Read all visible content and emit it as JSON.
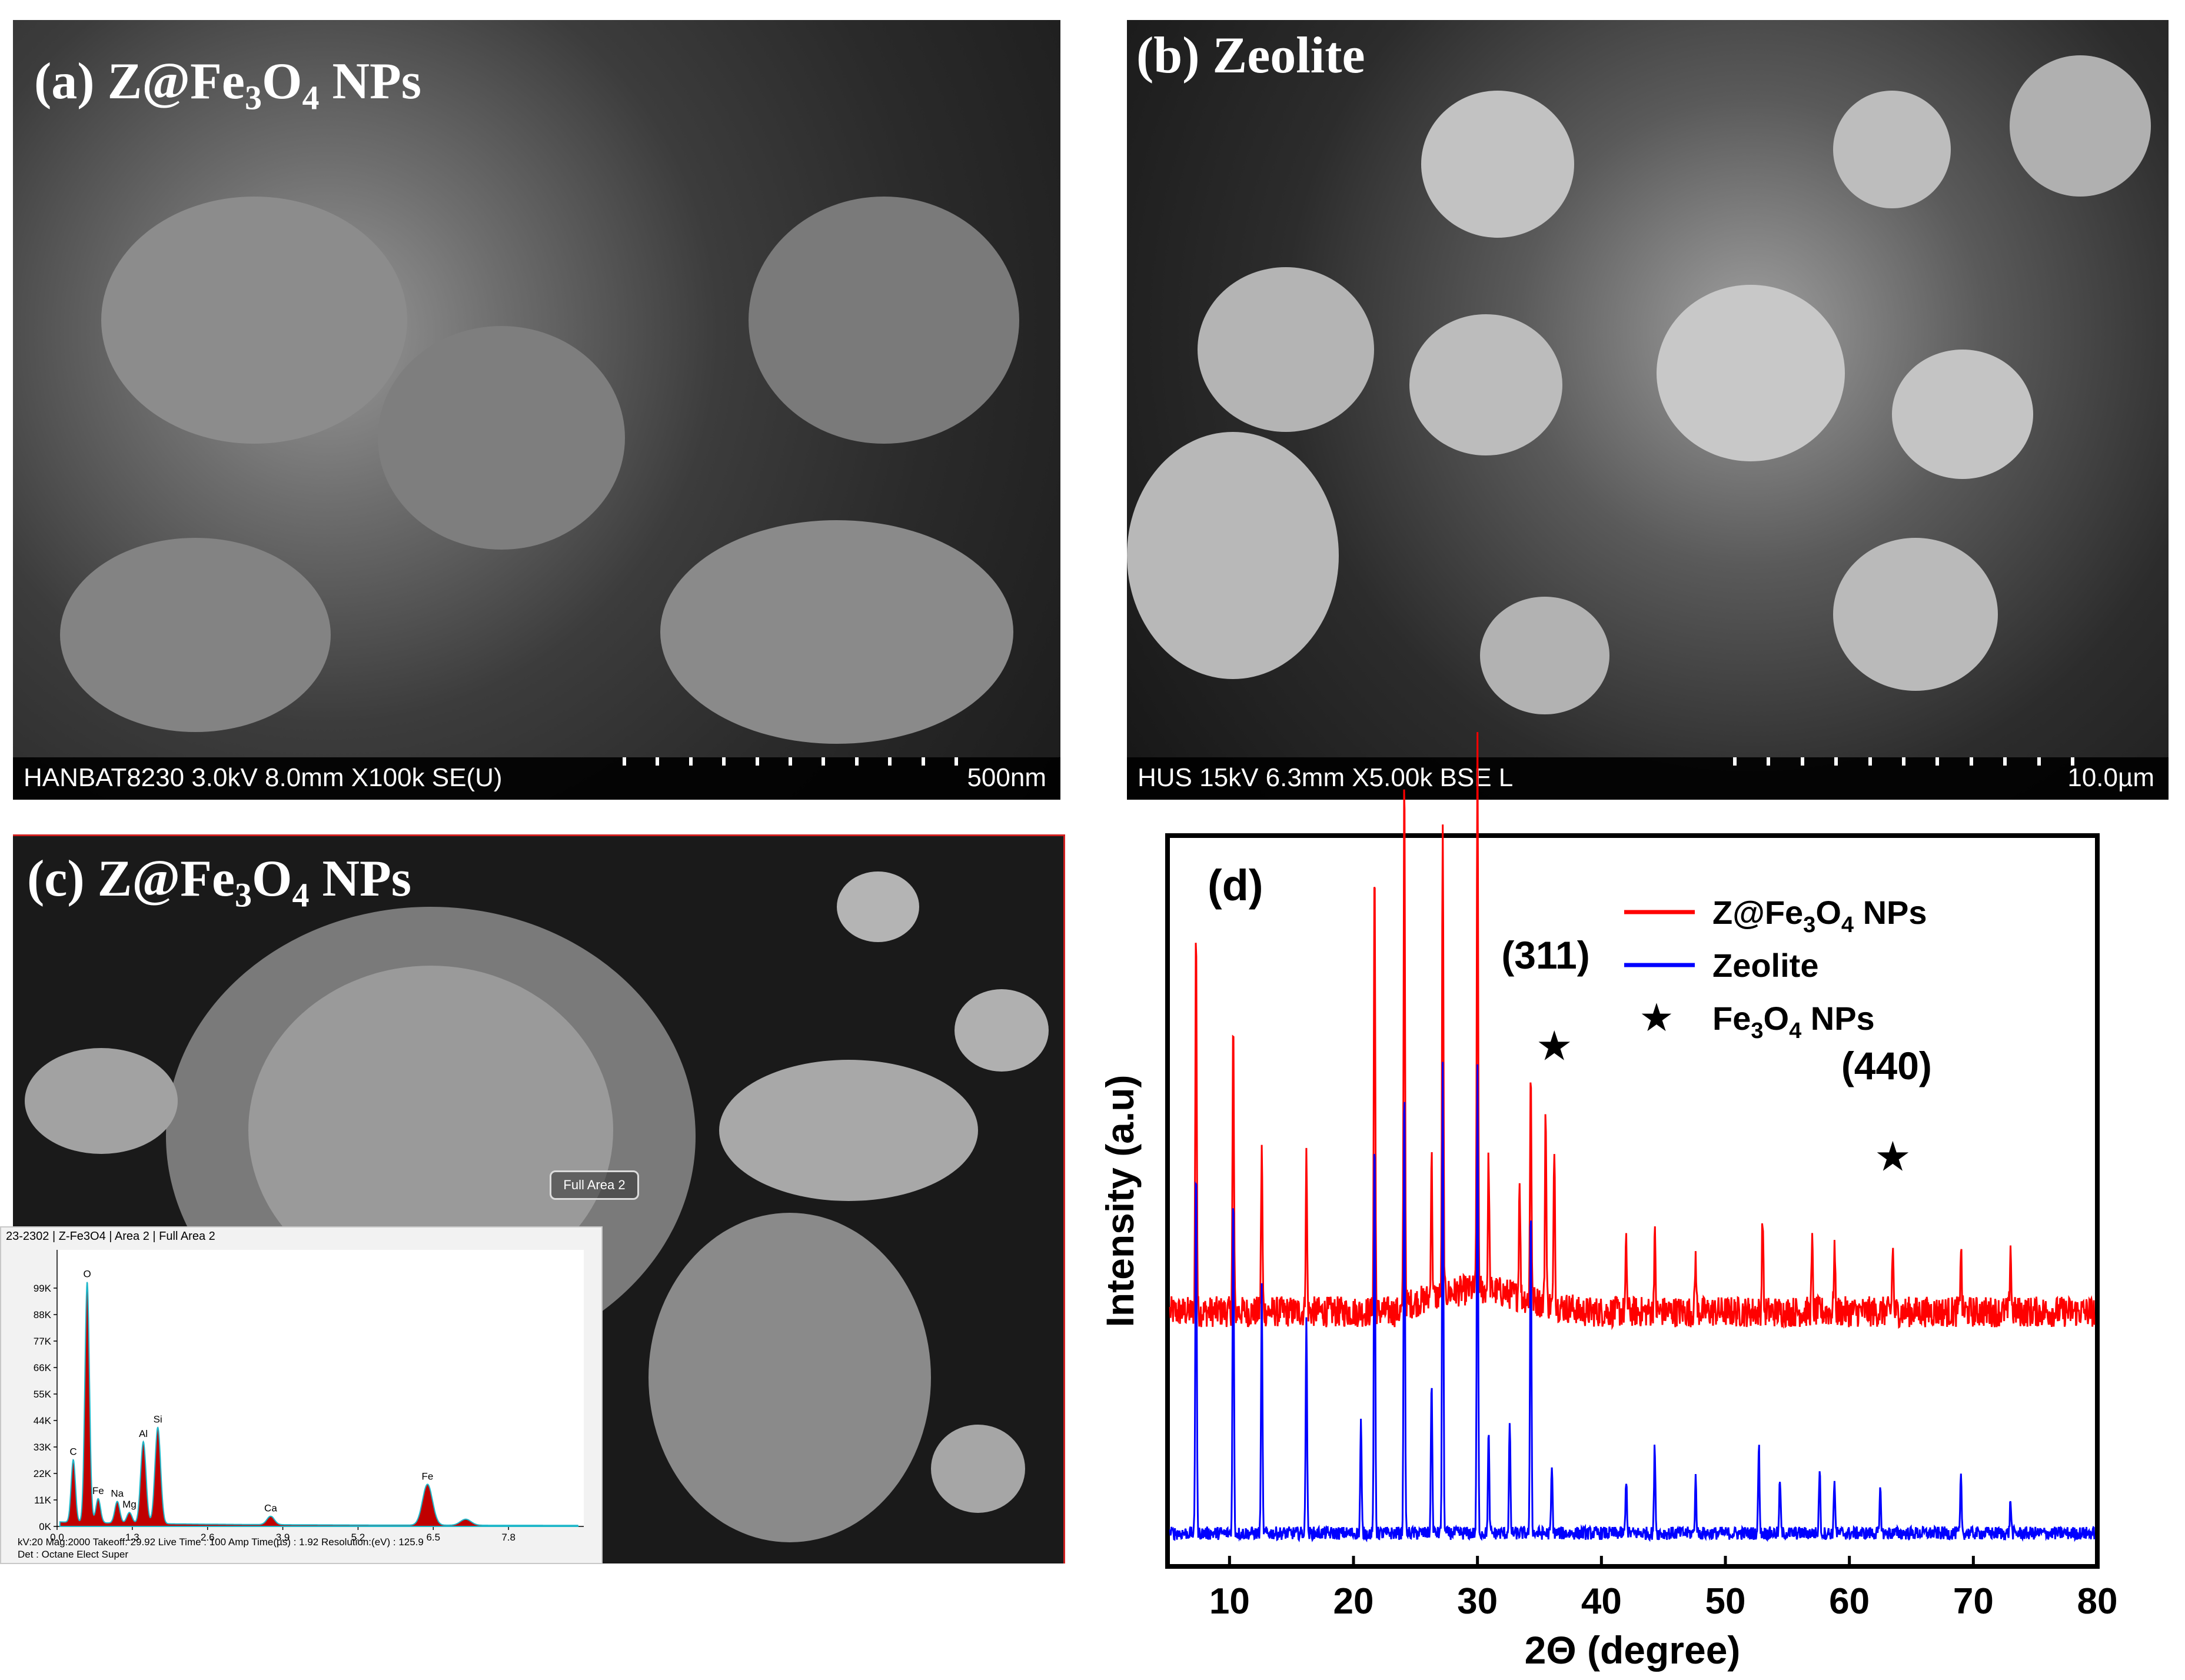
{
  "panel_a": {
    "title_main": "(a) Z@Fe",
    "title_sub1": "3",
    "title_mid": "O",
    "title_sub2": "4",
    "title_end": " NPs",
    "info": "HANBAT8230 3.0kV 8.0mm X100k SE(U)",
    "scale": "500nm"
  },
  "panel_b": {
    "title": "(b) Zeolite",
    "info": "HUS 15kV 6.3mm X5.00k BSE L",
    "scale": "10.0µm"
  },
  "panel_c": {
    "title_main": "(c) Z@Fe",
    "title_sub1": "3",
    "title_mid": "O",
    "title_sub2": "4",
    "title_end": " NPs",
    "area_label": "Full Area 2",
    "eds": {
      "header": "23-2302 | Z-Fe3O4 | Area 2 | Full Area 2",
      "footer_line1": "kV:20       Mag:2000       Takeoff: 29.92      Live Time : 100       Amp Time(µs) : 1.92       Resolution:(eV) : 125.9",
      "footer_line2": "Det : Octane Elect Super",
      "y_ticks": [
        "0K",
        "11K",
        "22K",
        "33K",
        "44K",
        "55K",
        "66K",
        "77K",
        "88K",
        "99K"
      ],
      "x_ticks": [
        "0.0",
        "1.3",
        "2.6",
        "3.9",
        "5.2",
        "6.5",
        "7.8"
      ],
      "peaks": [
        {
          "label": "C",
          "energy": 0.28,
          "counts": 26000
        },
        {
          "label": "O",
          "energy": 0.52,
          "counts": 100000
        },
        {
          "label": "Fe",
          "energy": 0.71,
          "counts": 10000
        },
        {
          "label": "Na",
          "energy": 1.04,
          "counts": 9000
        },
        {
          "label": "Mg",
          "energy": 1.25,
          "counts": 4500
        },
        {
          "label": "Al",
          "energy": 1.49,
          "counts": 34000
        },
        {
          "label": "Si",
          "energy": 1.74,
          "counts": 40000
        },
        {
          "label": "Ca",
          "energy": 3.69,
          "counts": 3500
        },
        {
          "label": "Fe",
          "energy": 6.4,
          "counts": 17000
        },
        {
          "label": "",
          "energy": 7.06,
          "counts": 2500
        }
      ],
      "fill_color": "#c00000",
      "line_color": "#1fb7c9"
    }
  },
  "chart_data": {
    "type": "line",
    "panel_label": "(d)",
    "xlabel": "2Θ (degree)",
    "ylabel": "Intensity (a.u)",
    "xlim": [
      5,
      80
    ],
    "x_ticks": [
      "10",
      "20",
      "30",
      "40",
      "50",
      "60",
      "70",
      "80"
    ],
    "x_tick_values": [
      10,
      20,
      30,
      40,
      50,
      60,
      70,
      80
    ],
    "grid": false,
    "legend_position": "top-right",
    "legend": [
      {
        "pre": "Z@Fe",
        "sub1": "3",
        "mid": "O",
        "sub2": "4",
        "post": " NPs",
        "color": "#ff0000"
      },
      {
        "pre": "Zeolite",
        "sub1": "",
        "mid": "",
        "sub2": "",
        "post": "",
        "color": "#0000ff"
      },
      {
        "pre": "Fe",
        "sub1": "3",
        "mid": "O",
        "sub2": "4",
        "post": " NPs",
        "marker": "★",
        "color": "#000000"
      }
    ],
    "series": [
      {
        "name": "Z@Fe3O4 NPs",
        "color": "#ff0000",
        "baseline": 1.0,
        "peaks": [
          [
            7.3,
            1.75
          ],
          [
            10.3,
            1.3
          ],
          [
            12.6,
            0.75
          ],
          [
            16.2,
            0.7
          ],
          [
            21.7,
            2.05
          ],
          [
            24.1,
            2.45
          ],
          [
            26.3,
            0.65
          ],
          [
            27.2,
            2.1
          ],
          [
            30.0,
            2.45
          ],
          [
            30.9,
            0.6
          ],
          [
            33.4,
            0.55
          ],
          [
            34.3,
            1.05
          ],
          [
            35.5,
            0.9
          ],
          [
            36.2,
            0.75
          ],
          [
            42.0,
            0.3
          ],
          [
            44.3,
            0.35
          ],
          [
            47.6,
            0.25
          ],
          [
            53.0,
            0.45
          ],
          [
            57.0,
            0.3
          ],
          [
            58.8,
            0.3
          ],
          [
            63.5,
            0.3
          ],
          [
            69.0,
            0.3
          ],
          [
            73.0,
            0.3
          ]
        ]
      },
      {
        "name": "Zeolite",
        "color": "#0000ff",
        "baseline": 0.0,
        "peaks": [
          [
            7.3,
            1.7
          ],
          [
            10.3,
            1.55
          ],
          [
            12.6,
            1.1
          ],
          [
            16.2,
            1.0
          ],
          [
            20.6,
            0.5
          ],
          [
            21.7,
            1.8
          ],
          [
            24.1,
            2.05
          ],
          [
            26.3,
            0.7
          ],
          [
            27.2,
            2.1
          ],
          [
            30.0,
            2.1
          ],
          [
            30.9,
            0.45
          ],
          [
            32.6,
            0.5
          ],
          [
            34.3,
            1.5
          ],
          [
            36.0,
            0.3
          ],
          [
            42.0,
            0.25
          ],
          [
            44.3,
            0.4
          ],
          [
            47.6,
            0.25
          ],
          [
            52.7,
            0.4
          ],
          [
            54.4,
            0.25
          ],
          [
            57.6,
            0.3
          ],
          [
            58.8,
            0.25
          ],
          [
            62.5,
            0.2
          ],
          [
            69.0,
            0.25
          ],
          [
            73.0,
            0.15
          ]
        ]
      }
    ],
    "annotations": [
      {
        "text": "(311)",
        "x": 35.5,
        "y": 2.55
      },
      {
        "text": "(440)",
        "x": 63.0,
        "y": 2.05
      }
    ],
    "star_markers": [
      {
        "x": 36.2,
        "y": 2.2
      },
      {
        "x": 63.5,
        "y": 1.7
      }
    ]
  }
}
